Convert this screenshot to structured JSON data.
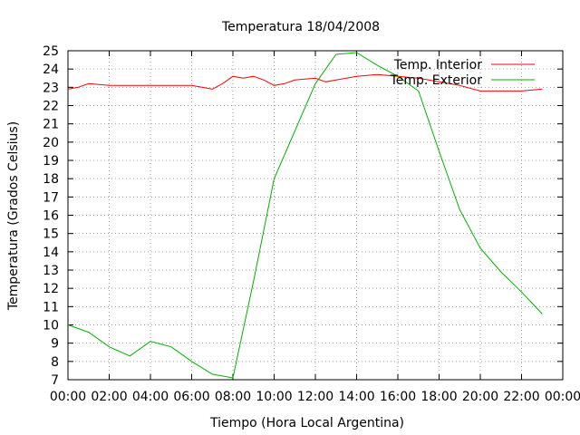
{
  "chart_data": {
    "type": "line",
    "title": "Temperatura 18/04/2008",
    "xlabel": "Tiempo (Hora Local Argentina)",
    "ylabel": "Temperatura (Grados Celsius)",
    "xlim": [
      0,
      24
    ],
    "ylim": [
      7,
      25
    ],
    "grid": true,
    "legend_position": "top-right",
    "x_tick_labels": [
      "00:00",
      "02:00",
      "04:00",
      "06:00",
      "08:00",
      "10:00",
      "12:00",
      "14:00",
      "16:00",
      "18:00",
      "20:00",
      "22:00",
      "00:00"
    ],
    "y_tick_labels": [
      "7",
      "8",
      "9",
      "10",
      "11",
      "12",
      "13",
      "14",
      "15",
      "16",
      "17",
      "18",
      "19",
      "20",
      "21",
      "22",
      "23",
      "24",
      "25"
    ],
    "series": [
      {
        "name": "Temp. Interior",
        "color": "#ff0000",
        "x": [
          0,
          0.5,
          1,
          2,
          3,
          4,
          5,
          6,
          6.5,
          7,
          7.5,
          8,
          8.5,
          9,
          9.5,
          10,
          10.5,
          11,
          12,
          12.5,
          13,
          14,
          15,
          16,
          17,
          18,
          19,
          20,
          21,
          22,
          23
        ],
        "y": [
          22.9,
          23.0,
          23.2,
          23.1,
          23.1,
          23.1,
          23.1,
          23.1,
          23.0,
          22.9,
          23.2,
          23.6,
          23.5,
          23.6,
          23.4,
          23.1,
          23.2,
          23.4,
          23.5,
          23.3,
          23.4,
          23.6,
          23.7,
          23.6,
          23.5,
          23.3,
          23.1,
          22.8,
          22.8,
          22.8,
          22.9
        ]
      },
      {
        "name": "Temp. Exterior",
        "color": "#00b000",
        "x": [
          0,
          1,
          2,
          3,
          4,
          5,
          6,
          7,
          8,
          9,
          10,
          11,
          12,
          13,
          14,
          15,
          16,
          17,
          18,
          19,
          20,
          21,
          22,
          23
        ],
        "y": [
          10.0,
          9.6,
          8.8,
          8.3,
          9.1,
          8.8,
          8.0,
          7.3,
          7.1,
          12.4,
          18.0,
          20.6,
          23.2,
          24.8,
          24.9,
          24.2,
          23.6,
          22.8,
          19.5,
          16.3,
          14.2,
          12.9,
          11.8,
          10.6
        ]
      }
    ]
  }
}
